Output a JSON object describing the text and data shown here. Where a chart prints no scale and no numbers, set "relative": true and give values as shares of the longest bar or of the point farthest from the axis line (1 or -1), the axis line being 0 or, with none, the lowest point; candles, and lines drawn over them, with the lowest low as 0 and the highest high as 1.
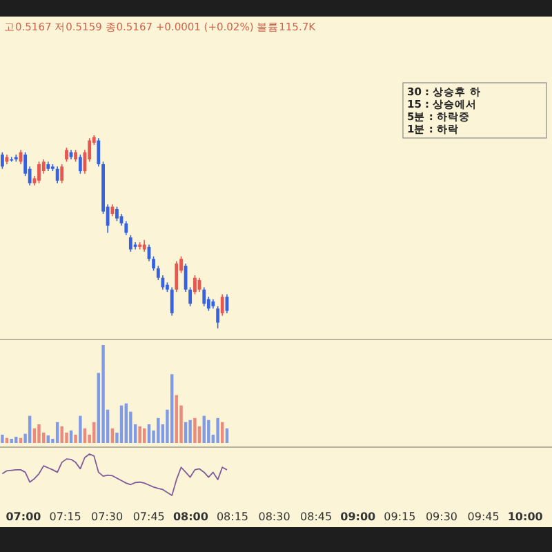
{
  "chart_data": [
    {
      "type": "candlestick",
      "relative": true,
      "tick_labels": false,
      "colors": [
        "#3563e0",
        "#e8574f",
        "#3563e0",
        "#3563e0",
        "#e8574f",
        "#3563e0",
        "#3563e0",
        "#e8574f",
        "#e8574f",
        "#e8574f",
        "#3563e0",
        "#3563e0",
        "#3563e0",
        "#e8574f",
        "#e8574f",
        "#3563e0",
        "#e8574f",
        "#3563e0",
        "#e8574f",
        "#e8574f",
        "#e8574f",
        "#3563e0",
        "#3563e0",
        "#3563e0",
        "#e8574f",
        "#3563e0",
        "#3563e0",
        "#3563e0",
        "#3563e0",
        "#3563e0",
        "#e8574f",
        "#e8574f",
        "#3563e0",
        "#3563e0",
        "#3563e0",
        "#3563e0",
        "#3563e0",
        "#3563e0",
        "#e8574f",
        "#e8574f",
        "#3563e0",
        "#3563e0",
        "#e8574f",
        "#e8574f",
        "#3563e0",
        "#3563e0",
        "#3563e0",
        "#3563e0",
        "#e8574f",
        "#3563e0"
      ],
      "xlim": [
        6.86,
        10.16
      ],
      "x": [
        6.874,
        6.901,
        6.929,
        6.956,
        6.984,
        7.011,
        7.038,
        7.066,
        7.093,
        7.121,
        7.148,
        7.175,
        7.203,
        7.23,
        7.258,
        7.285,
        7.312,
        7.34,
        7.367,
        7.395,
        7.422,
        7.449,
        7.477,
        7.504,
        7.532,
        7.559,
        7.586,
        7.614,
        7.641,
        7.669,
        7.696,
        7.723,
        7.751,
        7.778,
        7.806,
        7.833,
        7.86,
        7.888,
        7.915,
        7.943,
        7.97,
        7.997,
        8.025,
        8.052,
        8.08,
        8.107,
        8.134,
        8.162,
        8.189,
        8.217
      ],
      "ohlc": [
        [
          0.9,
          0.912,
          0.826,
          0.838
        ],
        [
          0.863,
          0.9,
          0.85,
          0.887
        ],
        [
          0.875,
          0.887,
          0.863,
          0.87
        ],
        [
          0.887,
          0.9,
          0.863,
          0.875
        ],
        [
          0.863,
          0.924,
          0.85,
          0.912
        ],
        [
          0.9,
          0.912,
          0.789,
          0.801
        ],
        [
          0.826,
          0.838,
          0.74,
          0.752
        ],
        [
          0.752,
          0.789,
          0.74,
          0.777
        ],
        [
          0.765,
          0.863,
          0.752,
          0.85
        ],
        [
          0.814,
          0.875,
          0.801,
          0.863
        ],
        [
          0.85,
          0.863,
          0.814,
          0.826
        ],
        [
          0.838,
          0.85,
          0.814,
          0.826
        ],
        [
          0.826,
          0.838,
          0.752,
          0.765
        ],
        [
          0.765,
          0.85,
          0.752,
          0.838
        ],
        [
          0.875,
          0.936,
          0.863,
          0.924
        ],
        [
          0.912,
          0.924,
          0.875,
          0.887
        ],
        [
          0.875,
          0.924,
          0.863,
          0.912
        ],
        [
          0.887,
          0.9,
          0.801,
          0.814
        ],
        [
          0.814,
          0.924,
          0.801,
          0.912
        ],
        [
          0.875,
          0.985,
          0.863,
          0.973
        ],
        [
          0.961,
          1,
          0.95,
          0.99
        ],
        [
          0.973,
          0.985,
          0.838,
          0.85
        ],
        [
          0.85,
          0.863,
          0.593,
          0.605
        ],
        [
          0.63,
          0.642,
          0.495,
          0.532
        ],
        [
          0.593,
          0.642,
          0.581,
          0.63
        ],
        [
          0.618,
          0.63,
          0.556,
          0.569
        ],
        [
          0.581,
          0.593,
          0.532,
          0.544
        ],
        [
          0.544,
          0.556,
          0.483,
          0.495
        ],
        [
          0.471,
          0.483,
          0.397,
          0.409
        ],
        [
          0.434,
          0.446,
          0.409,
          0.422
        ],
        [
          0.422,
          0.446,
          0.409,
          0.434
        ],
        [
          0.409,
          0.458,
          0.397,
          0.434
        ],
        [
          0.422,
          0.434,
          0.348,
          0.36
        ],
        [
          0.36,
          0.373,
          0.299,
          0.311
        ],
        [
          0.311,
          0.324,
          0.25,
          0.262
        ],
        [
          0.262,
          0.275,
          0.201,
          0.213
        ],
        [
          0.226,
          0.238,
          0.189,
          0.201
        ],
        [
          0.201,
          0.213,
          0.066,
          0.079
        ],
        [
          0.201,
          0.348,
          0.189,
          0.336
        ],
        [
          0.299,
          0.373,
          0.287,
          0.36
        ],
        [
          0.324,
          0.336,
          0.189,
          0.201
        ],
        [
          0.201,
          0.213,
          0.115,
          0.128
        ],
        [
          0.189,
          0.275,
          0.177,
          0.262
        ],
        [
          0.201,
          0.262,
          0.189,
          0.25
        ],
        [
          0.201,
          0.213,
          0.115,
          0.128
        ],
        [
          0.152,
          0.164,
          0.091,
          0.103
        ],
        [
          0.14,
          0.152,
          0.103,
          0.115
        ],
        [
          0.103,
          0.115,
          0,
          0.03
        ],
        [
          0.079,
          0.177,
          0.066,
          0.164
        ],
        [
          0.164,
          0.177,
          0.079,
          0.091
        ]
      ],
      "annotations": [
        "고0.5167 저0.5159 종0.5167 +0.0001 (+0.02%) 볼륨115.7K",
        "30 : 상승후 하",
        "15 : 상승에서",
        "5분 : 하락중",
        "1분 : 하락"
      ]
    },
    {
      "type": "bar",
      "relative": true,
      "tick_labels": false,
      "xlim": [
        6.86,
        10.16
      ],
      "x": [
        6.874,
        6.901,
        6.929,
        6.956,
        6.984,
        7.011,
        7.038,
        7.066,
        7.093,
        7.121,
        7.148,
        7.175,
        7.203,
        7.23,
        7.258,
        7.285,
        7.312,
        7.34,
        7.367,
        7.395,
        7.422,
        7.449,
        7.477,
        7.504,
        7.532,
        7.559,
        7.586,
        7.614,
        7.641,
        7.669,
        7.696,
        7.723,
        7.751,
        7.778,
        7.806,
        7.833,
        7.86,
        7.888,
        7.915,
        7.943,
        7.97,
        7.997,
        8.025,
        8.052,
        8.08,
        8.107,
        8.134,
        8.162,
        8.189,
        8.217
      ],
      "values": [
        0.085,
        0.051,
        0.043,
        0.064,
        0.051,
        0.094,
        0.277,
        0.149,
        0.191,
        0.106,
        0.077,
        0.043,
        0.213,
        0.17,
        0.106,
        0.128,
        0.085,
        0.277,
        0.149,
        0.085,
        0.213,
        0.715,
        1,
        0.34,
        0.149,
        0.106,
        0.383,
        0.404,
        0.319,
        0.191,
        0.17,
        0.149,
        0.191,
        0.128,
        0.255,
        0.191,
        0.34,
        0.702,
        0.489,
        0.383,
        0.213,
        0.234,
        0.255,
        0.17,
        0.277,
        0.234,
        0.085,
        0.255,
        0.213,
        0.149
      ],
      "colors": [
        "#7f9be6",
        "#ec8a7c",
        "#7f9be6",
        "#7f9be6",
        "#ec8a7c",
        "#7f9be6",
        "#7f9be6",
        "#ec8a7c",
        "#ec8a7c",
        "#ec8a7c",
        "#7f9be6",
        "#7f9be6",
        "#7f9be6",
        "#ec8a7c",
        "#ec8a7c",
        "#7f9be6",
        "#ec8a7c",
        "#7f9be6",
        "#ec8a7c",
        "#ec8a7c",
        "#ec8a7c",
        "#7f9be6",
        "#7f9be6",
        "#7f9be6",
        "#ec8a7c",
        "#7f9be6",
        "#7f9be6",
        "#7f9be6",
        "#7f9be6",
        "#7f9be6",
        "#ec8a7c",
        "#ec8a7c",
        "#7f9be6",
        "#7f9be6",
        "#7f9be6",
        "#7f9be6",
        "#7f9be6",
        "#7f9be6",
        "#ec8a7c",
        "#ec8a7c",
        "#7f9be6",
        "#7f9be6",
        "#ec8a7c",
        "#ec8a7c",
        "#7f9be6",
        "#7f9be6",
        "#7f9be6",
        "#7f9be6",
        "#ec8a7c",
        "#7f9be6"
      ]
    },
    {
      "type": "line",
      "relative": true,
      "tick_labels": "x",
      "xlim": [
        6.86,
        10.16
      ],
      "xticks": [
        {
          "value": 7,
          "label": "07:00"
        },
        {
          "value": 7.25,
          "label": "07:15"
        },
        {
          "value": 7.5,
          "label": "07:30"
        },
        {
          "value": 7.75,
          "label": "07:45"
        },
        {
          "value": 8,
          "label": "08:00"
        },
        {
          "value": 8.25,
          "label": "08:15"
        },
        {
          "value": 8.5,
          "label": "08:30"
        },
        {
          "value": 8.75,
          "label": "08:45"
        },
        {
          "value": 9,
          "label": "09:00"
        },
        {
          "value": 9.25,
          "label": "09:15"
        },
        {
          "value": 9.5,
          "label": "09:30"
        },
        {
          "value": 9.75,
          "label": "09:45"
        },
        {
          "value": 10,
          "label": "10:00"
        }
      ],
      "x": [
        6.874,
        6.901,
        6.929,
        6.956,
        6.984,
        7.011,
        7.038,
        7.066,
        7.093,
        7.121,
        7.148,
        7.175,
        7.203,
        7.23,
        7.258,
        7.285,
        7.312,
        7.34,
        7.367,
        7.395,
        7.422,
        7.449,
        7.477,
        7.504,
        7.532,
        7.559,
        7.586,
        7.614,
        7.641,
        7.669,
        7.696,
        7.723,
        7.751,
        7.778,
        7.806,
        7.833,
        7.86,
        7.888,
        7.915,
        7.943,
        7.97,
        7.997,
        8.025,
        8.052,
        8.08,
        8.107,
        8.134,
        8.162,
        8.189,
        8.217
      ],
      "series": [
        {
          "color": "#7e5a9b",
          "values": [
            0.524,
            0.595,
            0.607,
            0.619,
            0.619,
            0.56,
            0.321,
            0.405,
            0.524,
            0.714,
            0.667,
            0.619,
            0.56,
            0.798,
            0.881,
            0.869,
            0.798,
            0.643,
            0.917,
            1,
            0.952,
            0.56,
            0.464,
            0.488,
            0.476,
            0.417,
            0.357,
            0.298,
            0.262,
            0.31,
            0.321,
            0.298,
            0.25,
            0.202,
            0.167,
            0.143,
            0.071,
            0,
            0.381,
            0.679,
            0.56,
            0.44,
            0.619,
            0.643,
            0.56,
            0.44,
            0.56,
            0.381,
            0.679,
            0.619
          ]
        }
      ]
    }
  ]
}
